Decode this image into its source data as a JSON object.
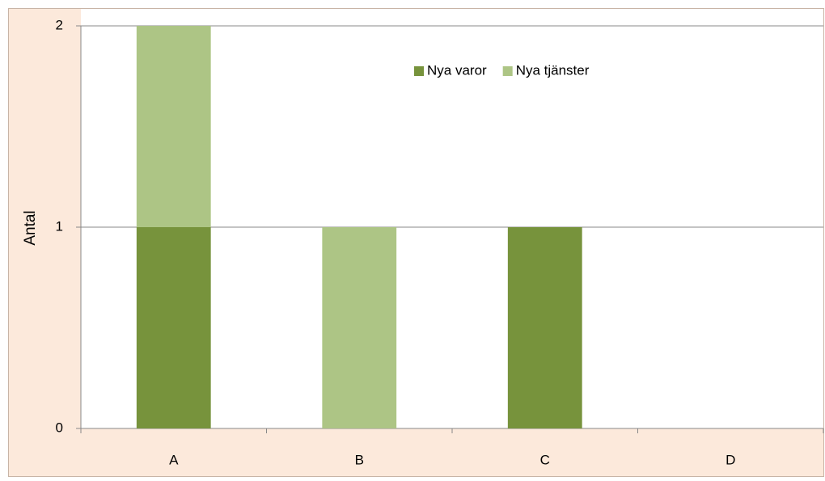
{
  "chart_data": {
    "type": "stacked_bar",
    "y_label": "Antal",
    "categories": [
      "A",
      "B",
      "C",
      "D"
    ],
    "series": [
      {
        "name": "Nya varor",
        "color": "#77933c",
        "values": [
          1,
          0,
          1,
          0
        ]
      },
      {
        "name": "Nya tjänster",
        "color": "#adc585",
        "values": [
          1,
          1,
          0,
          0
        ]
      }
    ],
    "ylim": [
      0,
      2
    ],
    "yticks": [
      0,
      1,
      2
    ],
    "grid": true,
    "legend": "top-right"
  }
}
